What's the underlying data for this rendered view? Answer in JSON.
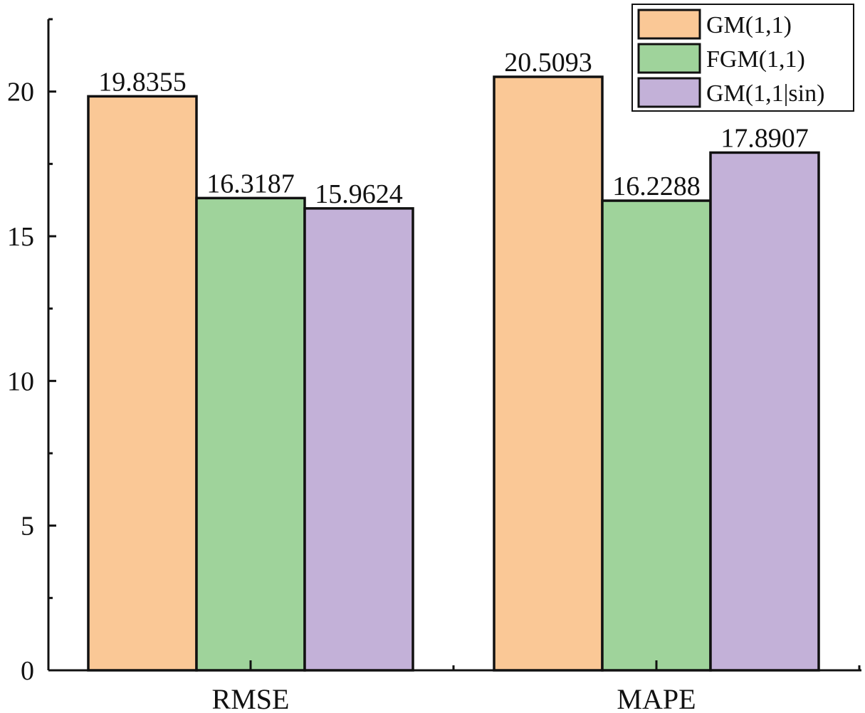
{
  "chart_data": {
    "type": "bar",
    "title": "",
    "xlabel": "",
    "ylabel": "",
    "categories": [
      "RMSE",
      "MAPE"
    ],
    "series": [
      {
        "name": "GM(1,1)",
        "values": [
          19.8355,
          20.5093
        ],
        "labels": [
          "19.8355",
          "20.5093"
        ],
        "color": "#FAC896"
      },
      {
        "name": "FGM(1,1)",
        "values": [
          16.3187,
          16.2288
        ],
        "labels": [
          "16.3187",
          "16.2288"
        ],
        "color": "#9FD39B"
      },
      {
        "name": "GM(1,1|sin)",
        "values": [
          15.9624,
          17.8907
        ],
        "labels": [
          "15.9624",
          "17.8907"
        ],
        "color": "#C3B1D8"
      }
    ],
    "ylim": [
      0,
      22.5
    ],
    "yticks": [
      0,
      5,
      10,
      15,
      20
    ],
    "yticklabels": [
      "0",
      "5",
      "10",
      "15",
      "20"
    ],
    "minor_ticks": [
      2.5,
      7.5,
      12.5,
      17.5,
      22.5
    ],
    "grid": false,
    "legend_position": "top-right"
  }
}
